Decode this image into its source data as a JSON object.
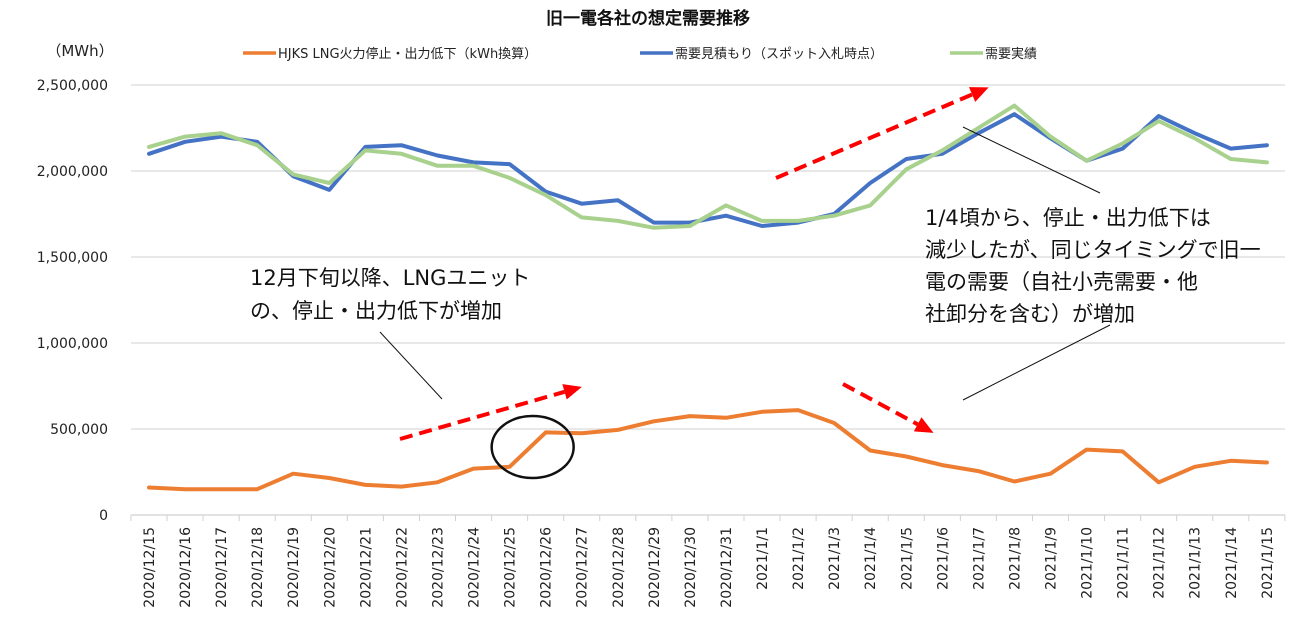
{
  "chart_data": {
    "type": "line",
    "title": "旧一電各社の想定需要推移",
    "ylabel": "（MWh）",
    "xlabel": "",
    "ylim": [
      0,
      2500000
    ],
    "yticks": [
      0,
      500000,
      1000000,
      1500000,
      2000000,
      2500000
    ],
    "ytick_labels": [
      "0",
      "500,000",
      "1,000,000",
      "1,500,000",
      "2,000,000",
      "2,500,000"
    ],
    "grid": true,
    "legend_position": "top",
    "categories": [
      "2020/12/15",
      "2020/12/16",
      "2020/12/17",
      "2020/12/18",
      "2020/12/19",
      "2020/12/20",
      "2020/12/21",
      "2020/12/22",
      "2020/12/23",
      "2020/12/24",
      "2020/12/25",
      "2020/12/26",
      "2020/12/27",
      "2020/12/28",
      "2020/12/29",
      "2020/12/30",
      "2020/12/31",
      "2021/1/1",
      "2021/1/2",
      "2021/1/3",
      "2021/1/4",
      "2021/1/5",
      "2021/1/6",
      "2021/1/7",
      "2021/1/8",
      "2021/1/9",
      "2021/1/10",
      "2021/1/11",
      "2021/1/12",
      "2021/1/13",
      "2021/1/14",
      "2021/1/15"
    ],
    "series": [
      {
        "name": "HJKS LNG火力停止・出力低下（kWh換算）",
        "color": "#ED7D31",
        "values": [
          160000,
          150000,
          150000,
          150000,
          240000,
          215000,
          175000,
          165000,
          190000,
          270000,
          280000,
          480000,
          475000,
          495000,
          545000,
          575000,
          565000,
          600000,
          610000,
          535000,
          375000,
          340000,
          290000,
          255000,
          195000,
          240000,
          380000,
          370000,
          190000,
          280000,
          315000,
          305000
        ]
      },
      {
        "name": "需要見積もり（スポット入札時点）",
        "color": "#4472C4",
        "values": [
          2100000,
          2170000,
          2200000,
          2170000,
          1970000,
          1890000,
          2140000,
          2150000,
          2090000,
          2050000,
          2040000,
          1880000,
          1810000,
          1830000,
          1700000,
          1700000,
          1740000,
          1680000,
          1700000,
          1750000,
          1930000,
          2070000,
          2100000,
          2220000,
          2330000,
          2190000,
          2060000,
          2130000,
          2320000,
          2220000,
          2130000,
          2150000
        ]
      },
      {
        "name": "需要実績",
        "color": "#A9D18E",
        "values": [
          2140000,
          2200000,
          2220000,
          2150000,
          1980000,
          1930000,
          2120000,
          2100000,
          2030000,
          2030000,
          1960000,
          1860000,
          1730000,
          1710000,
          1670000,
          1680000,
          1800000,
          1710000,
          1710000,
          1740000,
          1800000,
          2010000,
          2120000,
          2250000,
          2380000,
          2200000,
          2060000,
          2160000,
          2290000,
          2190000,
          2070000,
          2050000
        ]
      }
    ],
    "annotations": [
      {
        "id": "left",
        "lines": [
          "12月下旬以降、LNGユニット",
          "の、停止・出力低下が増加"
        ]
      },
      {
        "id": "right",
        "lines": [
          "1/4頃から、停止・出力低下は",
          "減少したが、同じタイミングで旧一",
          "電の需要（自社小売需要・他",
          "社卸分を含む）が増加"
        ]
      }
    ],
    "highlight": {
      "type": "circle",
      "around_category": "2020/12/26",
      "series": "HJKS LNG火力停止・出力低下（kWh換算）"
    },
    "trend_arrows": [
      {
        "direction": "up",
        "color": "#FF0000",
        "from_category": "2020/12/22",
        "to_category": "2020/12/27",
        "context": "LNG outages rising"
      },
      {
        "direction": "up",
        "color": "#FF0000",
        "from_category": "2021/1/2",
        "to_category": "2021/1/9",
        "context": "demand rising"
      },
      {
        "direction": "down",
        "color": "#FF0000",
        "from_category": "2021/1/3",
        "to_category": "2021/1/6",
        "context": "LNG outages falling"
      }
    ]
  }
}
